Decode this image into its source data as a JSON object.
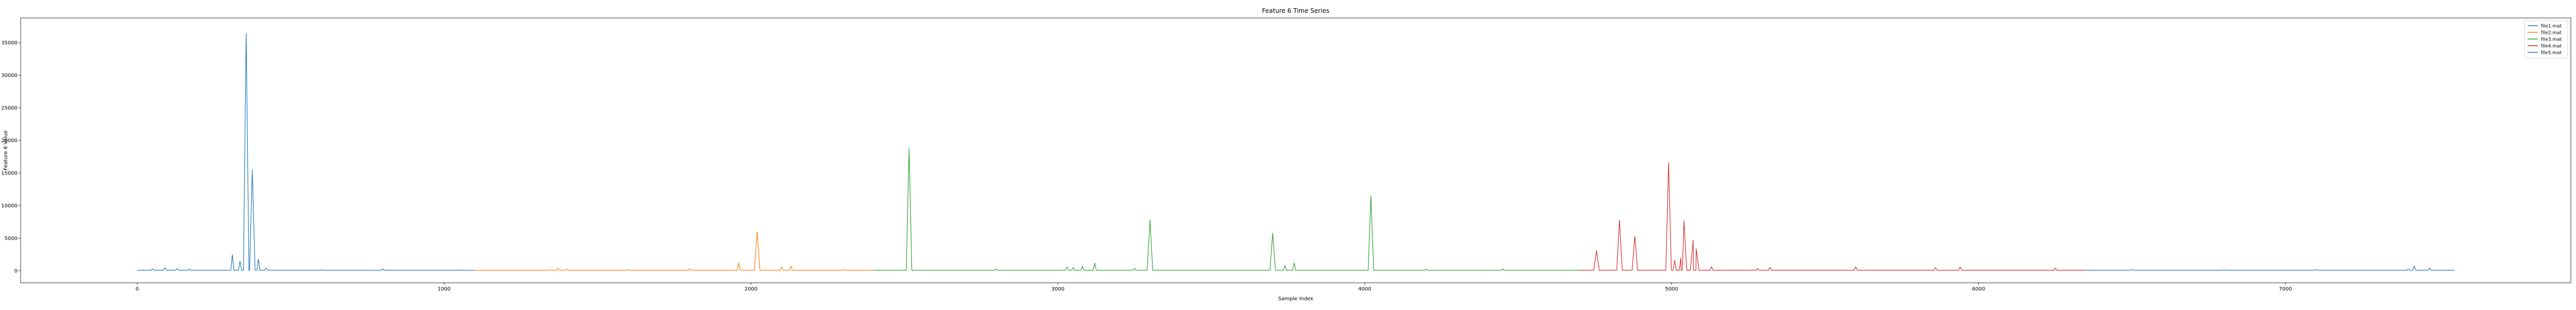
{
  "chart_data": {
    "type": "line",
    "title": "Feature 6 Time Series",
    "xlabel": "Sample Index",
    "ylabel": "Feature 6 Value",
    "xlim": [
      -380,
      7930
    ],
    "ylim": [
      -1850,
      38800
    ],
    "x_ticks": [
      0,
      1000,
      2000,
      3000,
      4000,
      5000,
      6000,
      7000
    ],
    "y_ticks": [
      0,
      5000,
      10000,
      15000,
      20000,
      25000,
      30000,
      35000
    ],
    "grid": false,
    "legend_position": "top-right",
    "series": [
      {
        "name": "file1.mat",
        "color": "#1f77b4",
        "x_start": 0,
        "x_end": 1100,
        "baseline": 80,
        "peaks": [
          [
            50,
            300
          ],
          [
            90,
            450
          ],
          [
            130,
            350
          ],
          [
            170,
            250
          ],
          [
            310,
            2500
          ],
          [
            335,
            1500
          ],
          [
            355,
            36500
          ],
          [
            375,
            15500
          ],
          [
            395,
            1800
          ],
          [
            420,
            400
          ],
          [
            600,
            150
          ],
          [
            800,
            300
          ],
          [
            1050,
            120
          ]
        ]
      },
      {
        "name": "file2.mat",
        "color": "#ff7f0e",
        "x_start": 1100,
        "x_end": 2400,
        "baseline": 80,
        "peaks": [
          [
            1350,
            200
          ],
          [
            1370,
            400
          ],
          [
            1400,
            250
          ],
          [
            1600,
            180
          ],
          [
            1800,
            300
          ],
          [
            1960,
            1200
          ],
          [
            2020,
            6000
          ],
          [
            2100,
            600
          ],
          [
            2130,
            700
          ],
          [
            2300,
            200
          ]
        ]
      },
      {
        "name": "file3.mat",
        "color": "#2ca02c",
        "x_start": 2400,
        "x_end": 4700,
        "baseline": 80,
        "peaks": [
          [
            2515,
            18800
          ],
          [
            2800,
            250
          ],
          [
            3030,
            600
          ],
          [
            3050,
            500
          ],
          [
            3080,
            700
          ],
          [
            3120,
            1200
          ],
          [
            3250,
            400
          ],
          [
            3300,
            7800
          ],
          [
            3700,
            5800
          ],
          [
            3740,
            800
          ],
          [
            3770,
            1200
          ],
          [
            4020,
            11500
          ],
          [
            4200,
            250
          ],
          [
            4450,
            300
          ]
        ]
      },
      {
        "name": "file4.mat",
        "color": "#d62728",
        "x_start": 4700,
        "x_end": 6350,
        "baseline": 80,
        "peaks": [
          [
            4755,
            3100
          ],
          [
            4830,
            7800
          ],
          [
            4880,
            5300
          ],
          [
            4990,
            16600
          ],
          [
            5010,
            1600
          ],
          [
            5030,
            2000
          ],
          [
            5040,
            7700
          ],
          [
            5070,
            4700
          ],
          [
            5080,
            3400
          ],
          [
            5130,
            600
          ],
          [
            5280,
            350
          ],
          [
            5320,
            500
          ],
          [
            5600,
            600
          ],
          [
            5860,
            500
          ],
          [
            5940,
            600
          ],
          [
            6250,
            400
          ]
        ]
      },
      {
        "name": "file5.mat",
        "color": "#1f77b4",
        "x_start": 6350,
        "x_end": 7550,
        "baseline": 80,
        "peaks": [
          [
            6500,
            200
          ],
          [
            6800,
            150
          ],
          [
            7100,
            200
          ],
          [
            7400,
            250
          ],
          [
            7420,
            700
          ],
          [
            7470,
            400
          ]
        ]
      }
    ]
  }
}
